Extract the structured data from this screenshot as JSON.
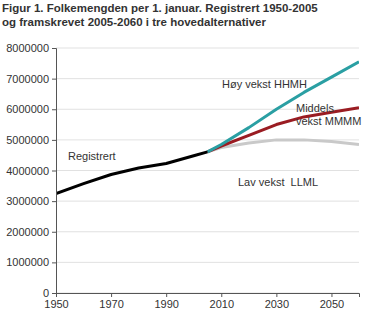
{
  "chart_data": {
    "type": "line",
    "title": "Figur 1. Folkemengden per 1. januar. Registrert 1950-2005\nog framskrevet 2005-2060 i tre hovedalternativer",
    "x": [
      1950,
      1960,
      1970,
      1980,
      1990,
      2000,
      2005,
      2010,
      2020,
      2030,
      2040,
      2050,
      2060
    ],
    "series": [
      {
        "name": "Registrert",
        "color": "#000000",
        "values": [
          3250000,
          3570000,
          3870000,
          4080000,
          4230000,
          4480000,
          4610000,
          null,
          null,
          null,
          null,
          null,
          null
        ]
      },
      {
        "name": "Høy vekst HHMH",
        "color": "#2a9fa3",
        "values": [
          null,
          null,
          null,
          null,
          null,
          null,
          4610000,
          4850000,
          5400000,
          6000000,
          6550000,
          7050000,
          7550000
        ]
      },
      {
        "name": "Middels\nvekst MMMM",
        "color": "#9a1c22",
        "values": [
          null,
          null,
          null,
          null,
          null,
          null,
          4610000,
          4800000,
          5150000,
          5500000,
          5750000,
          5900000,
          6050000
        ]
      },
      {
        "name": "Lav vekst  LLML",
        "color": "#c9c9c9",
        "values": [
          null,
          null,
          null,
          null,
          null,
          null,
          4610000,
          4750000,
          4900000,
          5000000,
          5000000,
          4950000,
          4850000
        ]
      }
    ],
    "xlim": [
      1950,
      2060
    ],
    "xticks": [
      1950,
      1970,
      1990,
      2010,
      2030,
      2050
    ],
    "ylim": [
      0,
      8000000
    ],
    "yticks": [
      0,
      1000000,
      2000000,
      3000000,
      4000000,
      5000000,
      6000000,
      7000000,
      8000000
    ],
    "grid": true
  }
}
